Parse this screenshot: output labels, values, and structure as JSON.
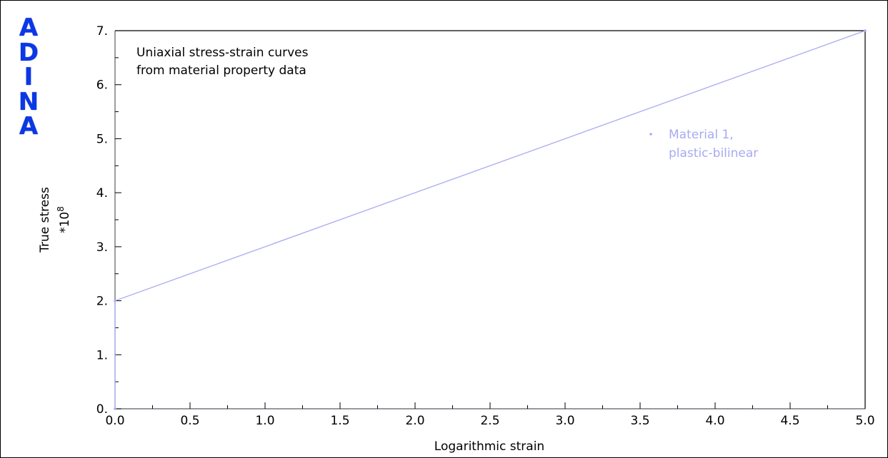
{
  "logo": {
    "letters": [
      "A",
      "D",
      "I",
      "N",
      "A"
    ],
    "color": "#0a38e6"
  },
  "annotation": {
    "line1": "Uniaxial stress-strain curves",
    "line2": "from material property data"
  },
  "legend": {
    "line1": "Material 1,",
    "line2": "plastic-bilinear",
    "color": "#a9aaf2"
  },
  "axes": {
    "xlabel": "Logarithmic strain",
    "ylabel": "True stress",
    "ymultiplier_base": "*10",
    "ymultiplier_exp": "8",
    "xticks": [
      "0.0",
      "0.5",
      "1.0",
      "1.5",
      "2.0",
      "2.5",
      "3.0",
      "3.5",
      "4.0",
      "4.5",
      "5.0"
    ],
    "yticks": [
      "0.",
      "1.",
      "2.",
      "3.",
      "4.",
      "5.",
      "6.",
      "7."
    ]
  },
  "chart_data": {
    "type": "line",
    "title": "",
    "xlabel": "Logarithmic strain",
    "ylabel": "True stress *10^8",
    "xlim": [
      0,
      5
    ],
    "ylim": [
      0,
      7
    ],
    "grid": false,
    "legend_position": "right",
    "series": [
      {
        "name": "Material 1, plastic-bilinear",
        "color": "#a9aaf2",
        "x": [
          0,
          0,
          5
        ],
        "y": [
          0,
          2,
          7
        ]
      }
    ]
  }
}
